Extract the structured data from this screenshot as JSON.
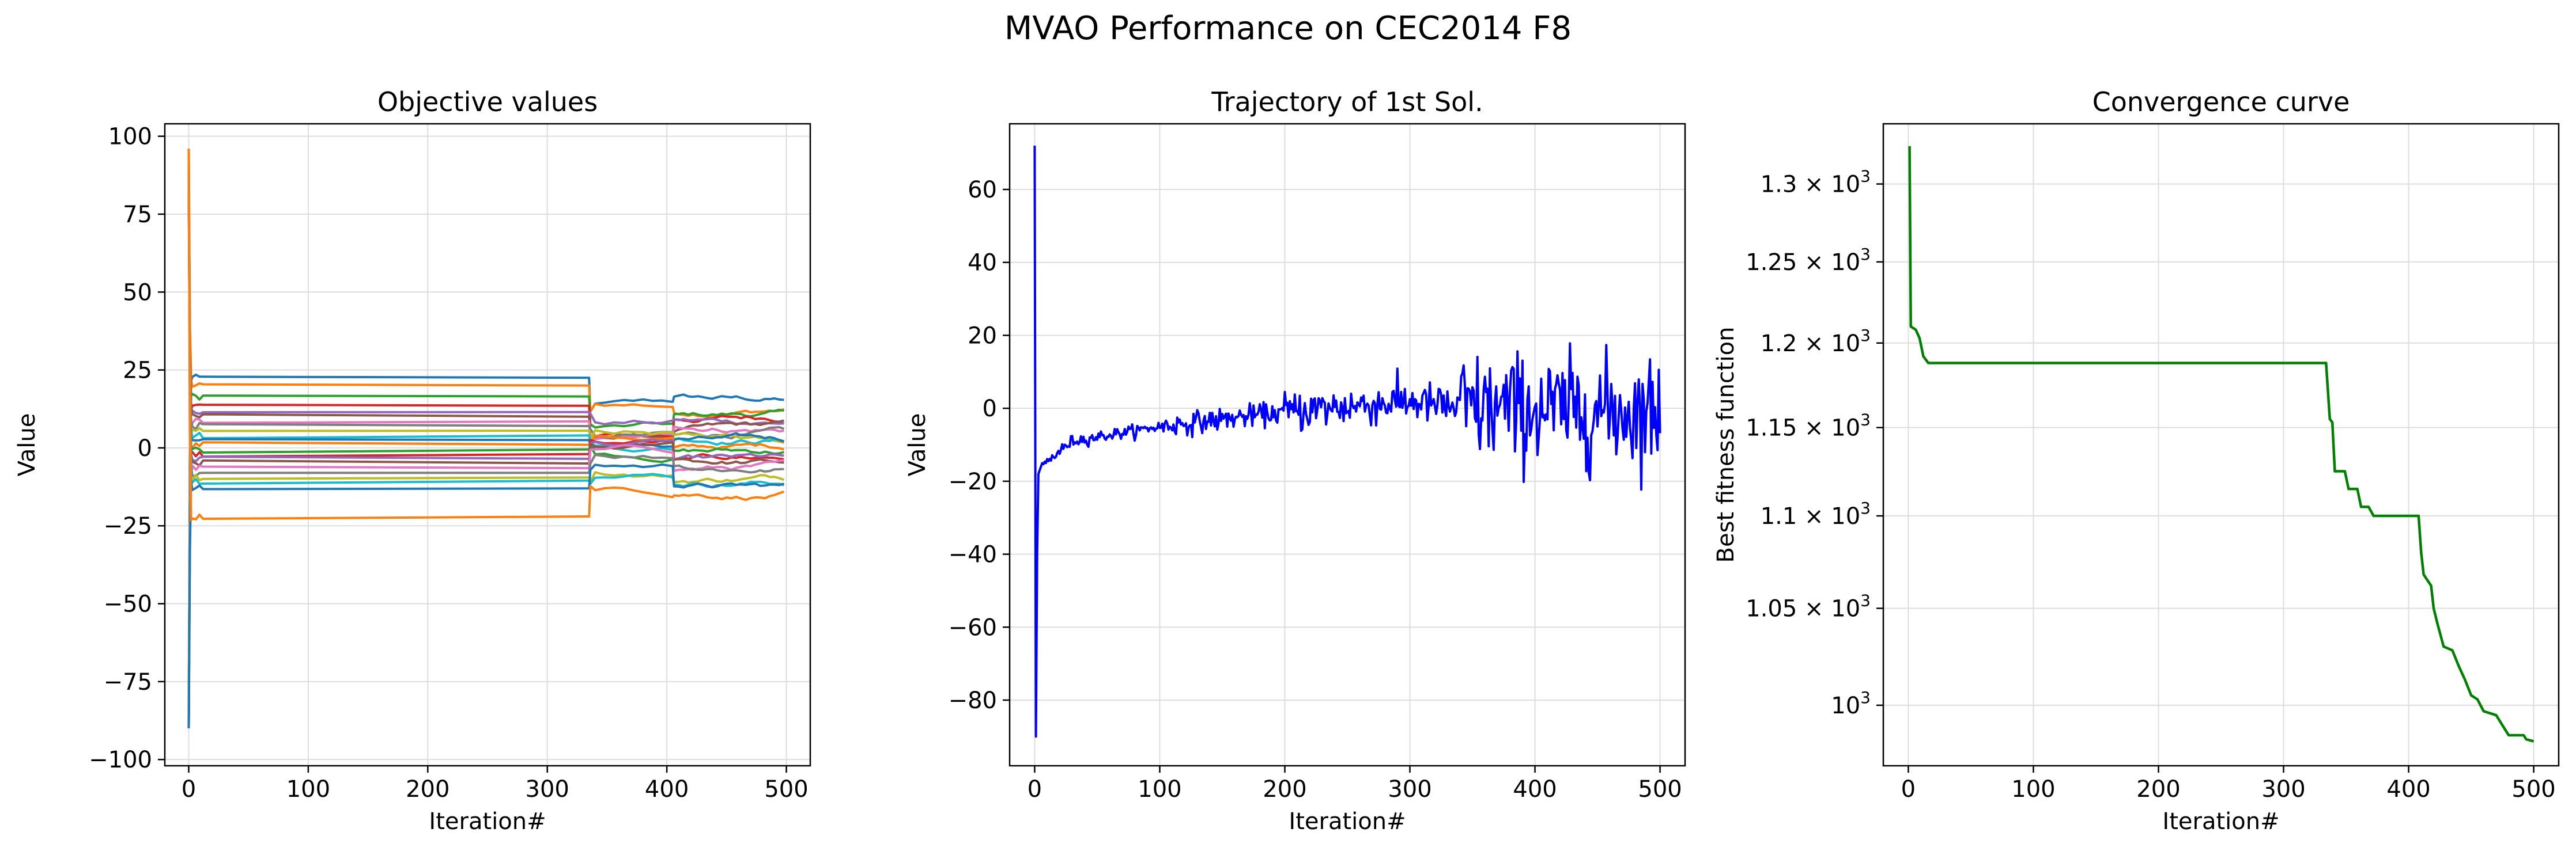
{
  "figure": {
    "title": "MVAO Performance on CEC2014 F8"
  },
  "chart_data": [
    {
      "id": "objective",
      "type": "line",
      "title": "Objective values",
      "xlabel": "Iteration#",
      "ylabel": "Value",
      "xlim": [
        -20,
        520
      ],
      "ylim": [
        -102,
        104
      ],
      "xticks": [
        0,
        100,
        200,
        300,
        400,
        500
      ],
      "yticks": [
        -100,
        -75,
        -50,
        -25,
        0,
        25,
        50,
        75,
        100
      ],
      "grid": true,
      "colors": [
        "#1f77b4",
        "#ff7f0e",
        "#2ca02c",
        "#d62728",
        "#9467bd",
        "#8c564b",
        "#e377c2",
        "#7f7f7f",
        "#bcbd22",
        "#17becf"
      ],
      "init_values": [
        -90,
        96,
        -88,
        88,
        -84,
        82,
        -86,
        90,
        -80,
        86
      ],
      "plateau_levels": [
        22.5,
        20,
        16.5,
        13.5,
        11.5,
        10,
        8.5,
        7,
        5.5,
        4,
        2.5,
        1,
        -0.5,
        -2,
        -3.5,
        -5,
        -6.5,
        -8,
        -9.5,
        -10.5,
        -13,
        -22
      ],
      "final_values": [
        15,
        13,
        11,
        10,
        8,
        7,
        6,
        5,
        4,
        3,
        2,
        0.5,
        -1,
        -2.5,
        -4,
        -5,
        -6,
        -7,
        -9,
        -10.5,
        -13,
        -15
      ],
      "switch_iterations": [
        335,
        405
      ],
      "iterations": 500
    },
    {
      "id": "trajectory",
      "type": "line",
      "title": "Trajectory of 1st Sol.",
      "xlabel": "Iteration#",
      "ylabel": "Value",
      "xlim": [
        -20,
        520
      ],
      "ylim": [
        -98,
        78
      ],
      "xticks": [
        0,
        100,
        200,
        300,
        400,
        500
      ],
      "yticks": [
        -80,
        -60,
        -40,
        -20,
        0,
        20,
        40,
        60
      ],
      "grid": true,
      "color": "#0000ff",
      "start_value": 72,
      "min_value": -90,
      "trend_points": [
        [
          0,
          -90
        ],
        [
          5,
          -16
        ],
        [
          30,
          -9
        ],
        [
          100,
          -5
        ],
        [
          200,
          -1
        ],
        [
          300,
          2
        ],
        [
          340,
          0
        ],
        [
          500,
          -1
        ]
      ],
      "iterations": 500
    },
    {
      "id": "convergence",
      "type": "line",
      "title": "Convergence curve",
      "xlabel": "Iteration#",
      "ylabel": "Best fitness function",
      "yscale": "log",
      "xlim": [
        -20,
        520
      ],
      "ylim": [
        970,
        1340
      ],
      "xticks": [
        0,
        100,
        200,
        300,
        400,
        500
      ],
      "yticks": [
        {
          "value": 1000,
          "label": "10^3"
        },
        {
          "value": 1050,
          "label": "1.05 × 10^3"
        },
        {
          "value": 1100,
          "label": "1.1 × 10^3"
        },
        {
          "value": 1150,
          "label": "1.15 × 10^3"
        },
        {
          "value": 1200,
          "label": "1.2 × 10^3"
        },
        {
          "value": 1250,
          "label": "1.25 × 10^3"
        },
        {
          "value": 1300,
          "label": "1.3 × 10^3"
        }
      ],
      "grid": true,
      "color": "#008000",
      "points": [
        [
          1,
          1325
        ],
        [
          2,
          1210
        ],
        [
          6,
          1208
        ],
        [
          9,
          1203
        ],
        [
          12,
          1192
        ],
        [
          16,
          1188
        ],
        [
          334,
          1188
        ],
        [
          337,
          1155
        ],
        [
          339,
          1153
        ],
        [
          341,
          1125
        ],
        [
          349,
          1125
        ],
        [
          352,
          1115
        ],
        [
          359,
          1115
        ],
        [
          362,
          1105
        ],
        [
          368,
          1105
        ],
        [
          372,
          1100
        ],
        [
          390,
          1100
        ],
        [
          408,
          1100
        ],
        [
          410,
          1080
        ],
        [
          412,
          1068
        ],
        [
          418,
          1062
        ],
        [
          420,
          1050
        ],
        [
          423,
          1042
        ],
        [
          428,
          1030
        ],
        [
          435,
          1028
        ],
        [
          440,
          1020
        ],
        [
          445,
          1013
        ],
        [
          450,
          1005
        ],
        [
          455,
          1003
        ],
        [
          460,
          997
        ],
        [
          470,
          995
        ],
        [
          475,
          990
        ],
        [
          480,
          985
        ],
        [
          492,
          985
        ],
        [
          494,
          983
        ],
        [
          500,
          982
        ]
      ]
    }
  ]
}
